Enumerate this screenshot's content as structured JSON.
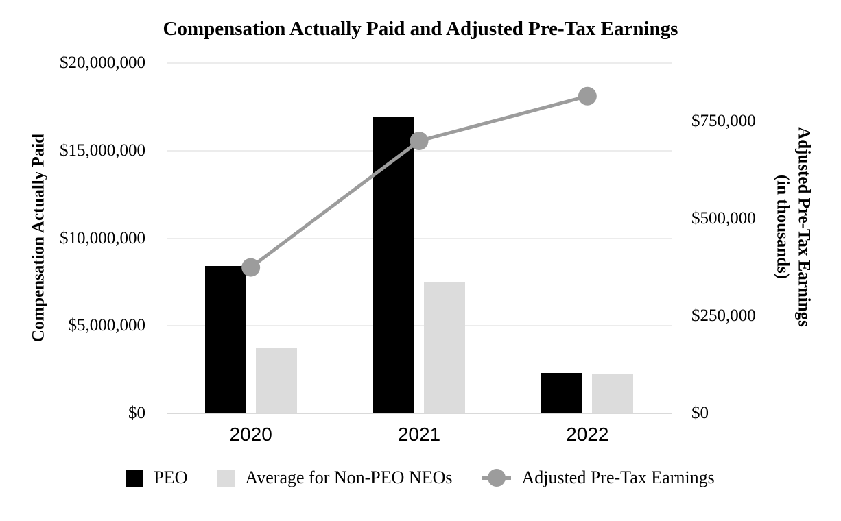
{
  "title": "Compensation Actually Paid and Adjusted Pre-Tax Earnings",
  "chart_data": {
    "type": "combo bar+line",
    "title": "Compensation Actually Paid and Adjusted Pre-Tax Earnings",
    "categories": [
      "2020",
      "2021",
      "2022"
    ],
    "series": [
      {
        "name": "PEO",
        "type": "bar",
        "axis": "left",
        "color": "#000000",
        "values": [
          8400000,
          16900000,
          2300000
        ]
      },
      {
        "name": "Average for Non-PEO NEOs",
        "type": "bar",
        "axis": "left",
        "color": "#dcdcdc",
        "values": [
          3700000,
          7500000,
          2250000
        ]
      },
      {
        "name": "Adjusted Pre-Tax Earnings",
        "type": "line",
        "axis": "right",
        "color": "#9c9c9c",
        "values": [
          375000,
          700000,
          815000
        ]
      }
    ],
    "left_axis": {
      "title": "Compensation Actually Paid",
      "min": 0,
      "max": 20000000,
      "tick_values": [
        0,
        5000000,
        10000000,
        15000000,
        20000000
      ],
      "tick_labels": [
        "$0",
        "$5,000,000",
        "$10,000,000",
        "$15,000,000",
        "$20,000,000"
      ]
    },
    "right_axis": {
      "title_line1": "Adjusted Pre-Tax Earnings",
      "title_line2": "(in thousands)",
      "min": 0,
      "max": 900000,
      "tick_values": [
        0,
        250000,
        500000,
        750000
      ],
      "tick_labels": [
        "$0",
        "$250,000",
        "$500,000",
        "$750,000"
      ]
    },
    "grid": true,
    "legend_position": "bottom"
  },
  "colors": {
    "background": "#ffffff",
    "gridline": "#ececec",
    "axis_line": "#d9d9d9",
    "bar_peo": "#000000",
    "bar_neo": "#dcdcdc",
    "line_series": "#9c9c9c",
    "text": "#000000"
  }
}
